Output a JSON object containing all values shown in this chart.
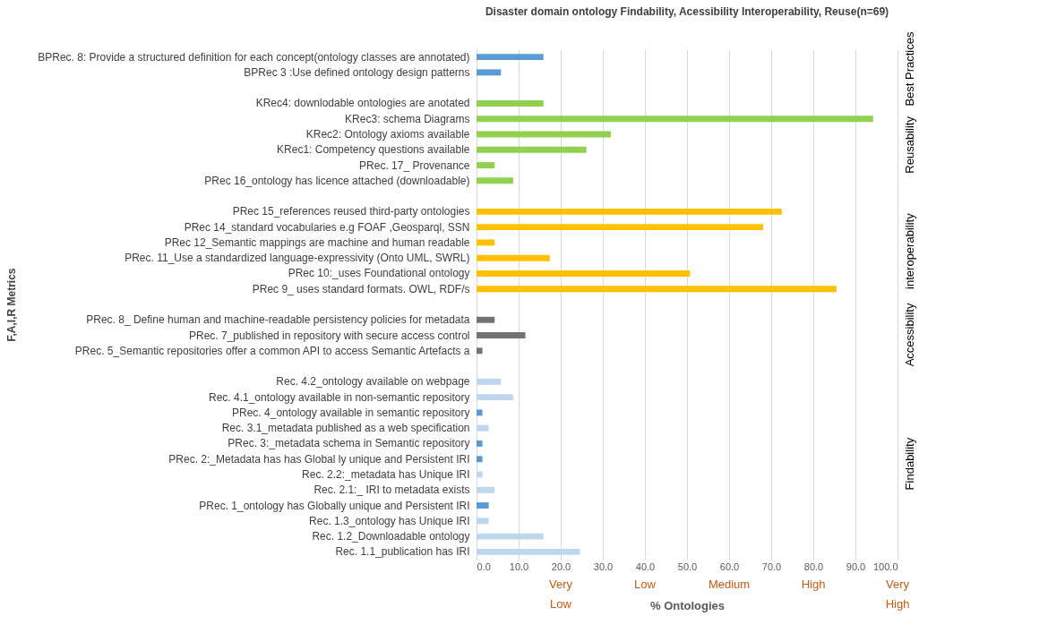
{
  "chart_data": {
    "type": "bar",
    "orientation": "horizontal",
    "title": "Disaster domain ontology Findability, Acessibility Interoperability,  Reuse(n=69)",
    "xlabel": "% Ontologies",
    "ylabel": "F,A,I,R Metrics",
    "categories": [
      "BPRec. 8: Provide a structured definition for each concept(ontology classes are annotated)",
      "BPRec 3 :Use defined ontology design patterns",
      null,
      "KRec4: downlodable ontologies are anotated",
      "KRec3: schema Diagrams",
      "KRec2: Ontology axioms available",
      "KRec1: Competency questions available",
      "PRec. 17_ Provenance ",
      "PRec 16_ontology has licence attached (downloadable)",
      null,
      "PRec 15_references  reused third-party ontologies",
      "PRec 14_standard vocabularies e.g FOAF ,Geosparql, SSN",
      "PRec 12_Semantic mappings are machine and human readable",
      "PRec. 11_Use a standardized language-expressivity (Onto UML, SWRL)",
      "PRec 10:_uses Foundational ontology",
      "PRec 9_  uses standard formats. OWL, RDF/s",
      null,
      "PRec. 8_ Define human and machine-readable persistency policies for metadata",
      "PRec. 7_published  in repository  with secure access control ",
      "PRec. 5_Semantic repositories offer a common API to access Semantic Artefacts a",
      null,
      "Rec. 4.2_ontology available on webpage",
      "Rec. 4.1_ontology available in non-semantic repository",
      "PRec. 4_ontology available in semantic repository",
      "Rec. 3.1_metadata published as a web specification",
      "PRec. 3:_metadata schema in Semantic repository ",
      "PRec. 2:_Metadata has has Global ly unique and Persistent IRI",
      "Rec. 2.2:_metadata has Unique IRI",
      "Rec. 2.1:_  IRI to metadata exists",
      "PRec. 1_ontology has Globally unique and Persistent IRI",
      "Rec. 1.3_ontology has Unique IRI",
      "Rec. 1.2_Downloadable ontology",
      "Rec. 1.1_publication has IRI "
    ],
    "values": [
      15.9,
      5.8,
      null,
      15.9,
      94.2,
      31.9,
      26.1,
      4.3,
      8.7,
      null,
      72.5,
      68.1,
      4.3,
      17.4,
      50.7,
      85.5,
      null,
      4.3,
      11.6,
      1.4,
      null,
      5.8,
      8.7,
      1.4,
      2.9,
      1.4,
      1.4,
      1.4,
      4.3,
      2.9,
      2.9,
      15.9,
      24.6
    ],
    "colors": [
      "#5b9bd5",
      "#5b9bd5",
      null,
      "#92d050",
      "#92d050",
      "#92d050",
      "#92d050",
      "#92d050",
      "#92d050",
      null,
      "#ffc000",
      "#ffc000",
      "#ffc000",
      "#ffc000",
      "#ffc000",
      "#ffc000",
      null,
      "#767171",
      "#767171",
      "#767171",
      null,
      "#bdd7ee",
      "#bdd7ee",
      "#5b9bd5",
      "#bdd7ee",
      "#5b9bd5",
      "#5b9bd5",
      "#bdd7ee",
      "#bdd7ee",
      "#5b9bd5",
      "#bdd7ee",
      "#bdd7ee",
      "#bdd7ee"
    ],
    "xlim": [
      0,
      100
    ],
    "xticks": [
      {
        "value": 0,
        "label": "0.0"
      },
      {
        "value": 10,
        "label": "10.0"
      },
      {
        "value": 20,
        "label": "20.0"
      },
      {
        "value": 30,
        "label": "30.0"
      },
      {
        "value": 40,
        "label": "40.0"
      },
      {
        "value": 50,
        "label": "50.0"
      },
      {
        "value": 60,
        "label": "60.0"
      },
      {
        "value": 70,
        "label": "70.0"
      },
      {
        "value": 80,
        "label": "80.0"
      },
      {
        "value": 90,
        "label": "90.0"
      },
      {
        "value": 100,
        "label": "100.0"
      }
    ],
    "grid": "x",
    "annotations": [
      "Best Practices",
      "Reusability",
      "interoperability",
      "Accessibility",
      "Findability",
      "Very Low",
      "Low",
      "Medium",
      "High",
      "Very High"
    ]
  }
}
